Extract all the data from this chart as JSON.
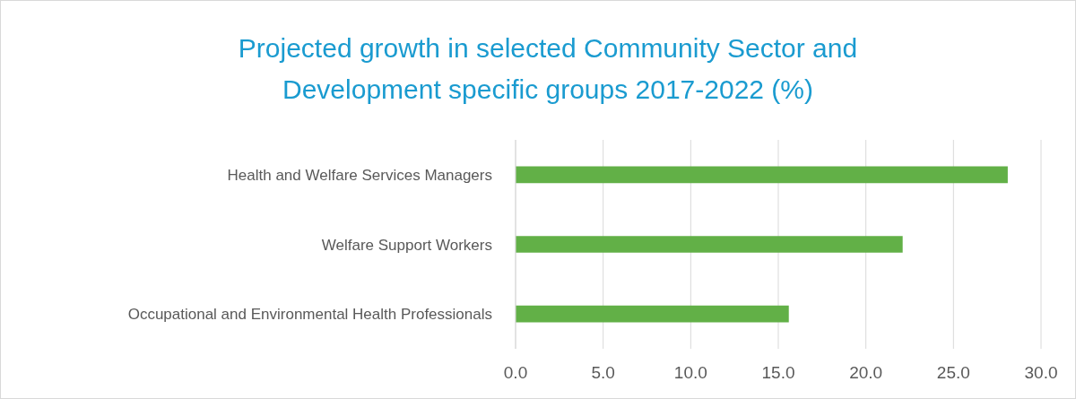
{
  "chart_data": {
    "type": "bar",
    "orientation": "horizontal",
    "title": "Projected growth in selected Community Sector and Development specific groups 2017-2022 (%)",
    "categories": [
      "Health and Welfare Services Managers",
      "Welfare Support Workers",
      "Occupational and Environmental Health Professionals"
    ],
    "values": [
      28.1,
      22.1,
      15.6
    ],
    "color": "#62b047",
    "xlim": [
      0,
      30
    ],
    "xticks": [
      {
        "value": 0,
        "label": "0.0"
      },
      {
        "value": 5,
        "label": "5.0"
      },
      {
        "value": 10,
        "label": "10.0"
      },
      {
        "value": 15,
        "label": "15.0"
      },
      {
        "value": 20,
        "label": "20.0"
      },
      {
        "value": 25,
        "label": "25.0"
      },
      {
        "value": 30,
        "label": "30.0"
      }
    ],
    "grid": "x"
  }
}
